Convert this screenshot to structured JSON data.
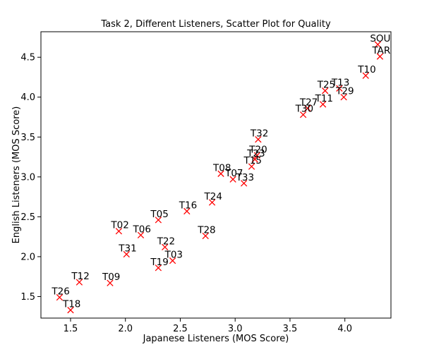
{
  "chart_data": {
    "type": "scatter",
    "title": "Task 2, Different Listeners, Scatter Plot for Quality",
    "xlabel": "Japanese Listeners (MOS Score)",
    "ylabel": "English Listeners (MOS Score)",
    "xlim": [
      1.23,
      4.42
    ],
    "ylim": [
      1.23,
      4.82
    ],
    "xticks": [
      "1.5",
      "2.0",
      "2.5",
      "3.0",
      "3.5",
      "4.0"
    ],
    "yticks": [
      "1.5",
      "2.0",
      "2.5",
      "3.0",
      "3.5",
      "4.0",
      "4.5"
    ],
    "grid": false,
    "marker": "x",
    "marker_color": "#ff0000",
    "points": [
      {
        "label": "SOU",
        "x": 4.3,
        "y": 4.66
      },
      {
        "label": "TAR",
        "x": 4.32,
        "y": 4.51
      },
      {
        "label": "T10",
        "x": 4.19,
        "y": 4.27
      },
      {
        "label": "T13",
        "x": 3.95,
        "y": 4.11
      },
      {
        "label": "T25",
        "x": 3.82,
        "y": 4.08
      },
      {
        "label": "T29",
        "x": 3.99,
        "y": 4.0
      },
      {
        "label": "T11",
        "x": 3.8,
        "y": 3.91
      },
      {
        "label": "T27",
        "x": 3.66,
        "y": 3.86
      },
      {
        "label": "T30",
        "x": 3.62,
        "y": 3.78
      },
      {
        "label": "T32",
        "x": 3.21,
        "y": 3.47
      },
      {
        "label": "T20",
        "x": 3.2,
        "y": 3.27
      },
      {
        "label": "T23",
        "x": 3.18,
        "y": 3.22
      },
      {
        "label": "T15",
        "x": 3.15,
        "y": 3.13
      },
      {
        "label": "T08",
        "x": 2.87,
        "y": 3.04
      },
      {
        "label": "T07",
        "x": 2.98,
        "y": 2.97
      },
      {
        "label": "T33",
        "x": 3.08,
        "y": 2.92
      },
      {
        "label": "T24",
        "x": 2.79,
        "y": 2.68
      },
      {
        "label": "T16",
        "x": 2.56,
        "y": 2.57
      },
      {
        "label": "T05",
        "x": 2.3,
        "y": 2.46
      },
      {
        "label": "T02",
        "x": 1.94,
        "y": 2.32
      },
      {
        "label": "T06",
        "x": 2.14,
        "y": 2.27
      },
      {
        "label": "T28",
        "x": 2.73,
        "y": 2.26
      },
      {
        "label": "T22",
        "x": 2.36,
        "y": 2.12
      },
      {
        "label": "T31",
        "x": 2.01,
        "y": 2.03
      },
      {
        "label": "T03",
        "x": 2.43,
        "y": 1.95
      },
      {
        "label": "T19",
        "x": 2.3,
        "y": 1.86
      },
      {
        "label": "T12",
        "x": 1.58,
        "y": 1.68
      },
      {
        "label": "T09",
        "x": 1.86,
        "y": 1.67
      },
      {
        "label": "T26",
        "x": 1.4,
        "y": 1.49
      },
      {
        "label": "T18",
        "x": 1.5,
        "y": 1.33
      }
    ]
  }
}
